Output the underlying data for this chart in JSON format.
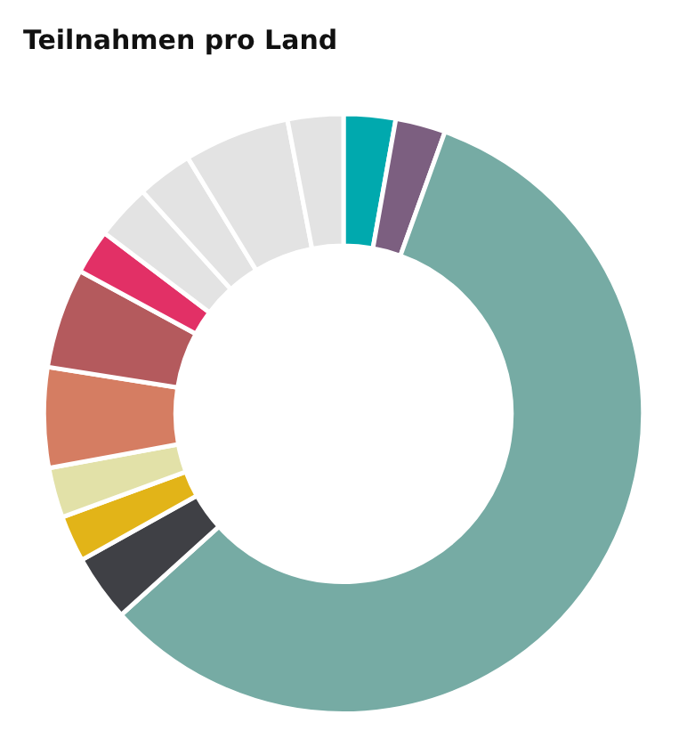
{
  "chart_data": {
    "type": "donut",
    "title": "Teilnahmen pro Land",
    "categories": [
      null,
      null,
      null,
      null,
      null,
      null,
      null,
      null,
      null,
      null,
      null,
      null,
      null
    ],
    "values": [
      2.8,
      2.7,
      57.8,
      3.6,
      2.5,
      2.7,
      5.4,
      5.4,
      2.4,
      3,
      3,
      5.7,
      3
    ],
    "colors": [
      "#00a9ae",
      "#7c5f80",
      "#76aba4",
      "#3f4045",
      "#e2b418",
      "#e2e1a8",
      "#d57d62",
      "#b45a5d",
      "#e23066",
      "#e3e3e3",
      "#e3e3e3",
      "#e3e3e3",
      "#e3e3e3"
    ]
  }
}
